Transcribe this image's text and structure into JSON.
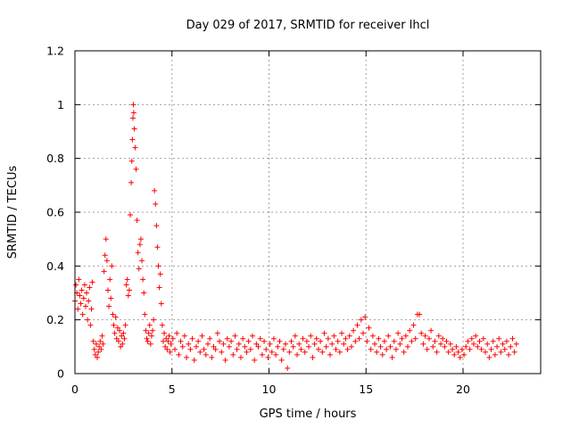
{
  "chart_data": {
    "type": "scatter",
    "title": "Day 029 of 2017, SRMTID for receiver lhcl",
    "xlabel": "GPS time / hours",
    "ylabel": "SRMTID / TECUs",
    "xlim": [
      0,
      24
    ],
    "ylim": [
      0,
      1.2
    ],
    "xticks": [
      0,
      5,
      10,
      15,
      20
    ],
    "xtick_labels": [
      "0",
      "5",
      "10",
      "15",
      "20"
    ],
    "yticks": [
      0,
      0.2,
      0.4,
      0.6,
      0.8,
      1,
      1.2
    ],
    "ytick_labels": [
      "0",
      "0.2",
      "0.4",
      "0.6",
      "0.8",
      "1",
      "1.2"
    ],
    "grid": true,
    "marker": "plus",
    "series": [
      {
        "name": "SRMTID",
        "color": "#ff0000",
        "points": [
          [
            0.0,
            0.27
          ],
          [
            0.05,
            0.33
          ],
          [
            0.1,
            0.3
          ],
          [
            0.15,
            0.24
          ],
          [
            0.2,
            0.35
          ],
          [
            0.25,
            0.29
          ],
          [
            0.3,
            0.26
          ],
          [
            0.35,
            0.31
          ],
          [
            0.4,
            0.22
          ],
          [
            0.45,
            0.28
          ],
          [
            0.5,
            0.33
          ],
          [
            0.55,
            0.25
          ],
          [
            0.6,
            0.3
          ],
          [
            0.65,
            0.2
          ],
          [
            0.7,
            0.27
          ],
          [
            0.75,
            0.32
          ],
          [
            0.8,
            0.18
          ],
          [
            0.85,
            0.24
          ],
          [
            0.9,
            0.34
          ],
          [
            0.95,
            0.12
          ],
          [
            1.0,
            0.09
          ],
          [
            1.05,
            0.07
          ],
          [
            1.1,
            0.11
          ],
          [
            1.15,
            0.06
          ],
          [
            1.2,
            0.08
          ],
          [
            1.25,
            0.1
          ],
          [
            1.3,
            0.12
          ],
          [
            1.35,
            0.09
          ],
          [
            1.4,
            0.14
          ],
          [
            1.45,
            0.11
          ],
          [
            1.5,
            0.38
          ],
          [
            1.55,
            0.44
          ],
          [
            1.6,
            0.5
          ],
          [
            1.65,
            0.42
          ],
          [
            1.7,
            0.31
          ],
          [
            1.75,
            0.25
          ],
          [
            1.8,
            0.35
          ],
          [
            1.85,
            0.28
          ],
          [
            1.9,
            0.4
          ],
          [
            1.95,
            0.22
          ],
          [
            2.0,
            0.18
          ],
          [
            2.05,
            0.15
          ],
          [
            2.1,
            0.21
          ],
          [
            2.15,
            0.13
          ],
          [
            2.2,
            0.17
          ],
          [
            2.25,
            0.12
          ],
          [
            2.3,
            0.16
          ],
          [
            2.35,
            0.1
          ],
          [
            2.4,
            0.14
          ],
          [
            2.45,
            0.11
          ],
          [
            2.5,
            0.15
          ],
          [
            2.55,
            0.13
          ],
          [
            2.6,
            0.18
          ],
          [
            2.65,
            0.33
          ],
          [
            2.7,
            0.35
          ],
          [
            2.75,
            0.29
          ],
          [
            2.8,
            0.31
          ],
          [
            2.85,
            0.59
          ],
          [
            2.9,
            0.71
          ],
          [
            2.93,
            0.79
          ],
          [
            2.96,
            0.87
          ],
          [
            2.99,
            0.95
          ],
          [
            3.01,
            1.0
          ],
          [
            3.03,
            0.97
          ],
          [
            3.06,
            0.91
          ],
          [
            3.1,
            0.84
          ],
          [
            3.15,
            0.76
          ],
          [
            3.2,
            0.57
          ],
          [
            3.25,
            0.45
          ],
          [
            3.3,
            0.39
          ],
          [
            3.35,
            0.48
          ],
          [
            3.4,
            0.5
          ],
          [
            3.45,
            0.42
          ],
          [
            3.5,
            0.35
          ],
          [
            3.55,
            0.3
          ],
          [
            3.6,
            0.22
          ],
          [
            3.65,
            0.16
          ],
          [
            3.7,
            0.13
          ],
          [
            3.75,
            0.12
          ],
          [
            3.8,
            0.15
          ],
          [
            3.85,
            0.18
          ],
          [
            3.9,
            0.11
          ],
          [
            3.95,
            0.14
          ],
          [
            4.0,
            0.16
          ],
          [
            4.05,
            0.2
          ],
          [
            4.1,
            0.68
          ],
          [
            4.15,
            0.63
          ],
          [
            4.2,
            0.55
          ],
          [
            4.25,
            0.47
          ],
          [
            4.3,
            0.4
          ],
          [
            4.35,
            0.32
          ],
          [
            4.4,
            0.37
          ],
          [
            4.45,
            0.26
          ],
          [
            4.5,
            0.18
          ],
          [
            4.55,
            0.12
          ],
          [
            4.6,
            0.15
          ],
          [
            4.65,
            0.1
          ],
          [
            4.7,
            0.13
          ],
          [
            4.75,
            0.09
          ],
          [
            4.8,
            0.12
          ],
          [
            4.85,
            0.14
          ],
          [
            4.9,
            0.08
          ],
          [
            4.95,
            0.11
          ],
          [
            5.05,
            0.13
          ],
          [
            5.15,
            0.09
          ],
          [
            5.25,
            0.15
          ],
          [
            5.35,
            0.07
          ],
          [
            5.45,
            0.12
          ],
          [
            5.55,
            0.1
          ],
          [
            5.65,
            0.14
          ],
          [
            5.75,
            0.06
          ],
          [
            5.85,
            0.11
          ],
          [
            5.95,
            0.09
          ],
          [
            6.05,
            0.13
          ],
          [
            6.15,
            0.05
          ],
          [
            6.25,
            0.1
          ],
          [
            6.35,
            0.12
          ],
          [
            6.45,
            0.08
          ],
          [
            6.55,
            0.14
          ],
          [
            6.65,
            0.09
          ],
          [
            6.75,
            0.07
          ],
          [
            6.85,
            0.11
          ],
          [
            6.95,
            0.13
          ],
          [
            7.05,
            0.06
          ],
          [
            7.15,
            0.1
          ],
          [
            7.25,
            0.09
          ],
          [
            7.35,
            0.15
          ],
          [
            7.45,
            0.12
          ],
          [
            7.55,
            0.08
          ],
          [
            7.65,
            0.11
          ],
          [
            7.75,
            0.05
          ],
          [
            7.85,
            0.13
          ],
          [
            7.95,
            0.1
          ],
          [
            8.05,
            0.12
          ],
          [
            8.15,
            0.07
          ],
          [
            8.25,
            0.14
          ],
          [
            8.35,
            0.09
          ],
          [
            8.45,
            0.11
          ],
          [
            8.55,
            0.06
          ],
          [
            8.65,
            0.13
          ],
          [
            8.75,
            0.1
          ],
          [
            8.85,
            0.08
          ],
          [
            8.95,
            0.12
          ],
          [
            9.05,
            0.09
          ],
          [
            9.15,
            0.14
          ],
          [
            9.25,
            0.05
          ],
          [
            9.35,
            0.11
          ],
          [
            9.45,
            0.1
          ],
          [
            9.55,
            0.13
          ],
          [
            9.65,
            0.07
          ],
          [
            9.75,
            0.12
          ],
          [
            9.85,
            0.09
          ],
          [
            9.95,
            0.06
          ],
          [
            10.05,
            0.11
          ],
          [
            10.15,
            0.08
          ],
          [
            10.25,
            0.13
          ],
          [
            10.35,
            0.07
          ],
          [
            10.45,
            0.1
          ],
          [
            10.55,
            0.12
          ],
          [
            10.65,
            0.05
          ],
          [
            10.75,
            0.09
          ],
          [
            10.85,
            0.11
          ],
          [
            10.95,
            0.02
          ],
          [
            11.05,
            0.08
          ],
          [
            11.15,
            0.12
          ],
          [
            11.25,
            0.1
          ],
          [
            11.35,
            0.14
          ],
          [
            11.45,
            0.07
          ],
          [
            11.55,
            0.11
          ],
          [
            11.65,
            0.09
          ],
          [
            11.75,
            0.13
          ],
          [
            11.85,
            0.08
          ],
          [
            11.95,
            0.12
          ],
          [
            12.05,
            0.1
          ],
          [
            12.15,
            0.14
          ],
          [
            12.25,
            0.06
          ],
          [
            12.35,
            0.11
          ],
          [
            12.45,
            0.13
          ],
          [
            12.55,
            0.09
          ],
          [
            12.65,
            0.12
          ],
          [
            12.75,
            0.08
          ],
          [
            12.85,
            0.15
          ],
          [
            12.95,
            0.1
          ],
          [
            13.05,
            0.13
          ],
          [
            13.15,
            0.07
          ],
          [
            13.25,
            0.11
          ],
          [
            13.35,
            0.14
          ],
          [
            13.45,
            0.09
          ],
          [
            13.55,
            0.12
          ],
          [
            13.65,
            0.08
          ],
          [
            13.75,
            0.15
          ],
          [
            13.85,
            0.11
          ],
          [
            13.95,
            0.13
          ],
          [
            14.05,
            0.09
          ],
          [
            14.15,
            0.14
          ],
          [
            14.25,
            0.1
          ],
          [
            14.35,
            0.16
          ],
          [
            14.45,
            0.12
          ],
          [
            14.55,
            0.18
          ],
          [
            14.65,
            0.13
          ],
          [
            14.75,
            0.2
          ],
          [
            14.85,
            0.15
          ],
          [
            14.95,
            0.21
          ],
          [
            15.05,
            0.12
          ],
          [
            15.15,
            0.17
          ],
          [
            15.25,
            0.09
          ],
          [
            15.35,
            0.14
          ],
          [
            15.45,
            0.11
          ],
          [
            15.55,
            0.08
          ],
          [
            15.65,
            0.13
          ],
          [
            15.75,
            0.1
          ],
          [
            15.85,
            0.07
          ],
          [
            15.95,
            0.12
          ],
          [
            16.05,
            0.09
          ],
          [
            16.15,
            0.14
          ],
          [
            16.25,
            0.1
          ],
          [
            16.35,
            0.06
          ],
          [
            16.45,
            0.12
          ],
          [
            16.55,
            0.09
          ],
          [
            16.65,
            0.15
          ],
          [
            16.75,
            0.11
          ],
          [
            16.85,
            0.13
          ],
          [
            16.95,
            0.08
          ],
          [
            17.05,
            0.14
          ],
          [
            17.15,
            0.1
          ],
          [
            17.25,
            0.16
          ],
          [
            17.35,
            0.12
          ],
          [
            17.45,
            0.18
          ],
          [
            17.55,
            0.13
          ],
          [
            17.65,
            0.22
          ],
          [
            17.75,
            0.22
          ],
          [
            17.85,
            0.15
          ],
          [
            17.95,
            0.11
          ],
          [
            18.05,
            0.14
          ],
          [
            18.15,
            0.09
          ],
          [
            18.25,
            0.13
          ],
          [
            18.35,
            0.16
          ],
          [
            18.45,
            0.1
          ],
          [
            18.55,
            0.12
          ],
          [
            18.65,
            0.08
          ],
          [
            18.75,
            0.14
          ],
          [
            18.85,
            0.11
          ],
          [
            18.95,
            0.13
          ],
          [
            19.05,
            0.1
          ],
          [
            19.15,
            0.12
          ],
          [
            19.25,
            0.08
          ],
          [
            19.35,
            0.11
          ],
          [
            19.45,
            0.09
          ],
          [
            19.55,
            0.07
          ],
          [
            19.65,
            0.1
          ],
          [
            19.75,
            0.08
          ],
          [
            19.85,
            0.06
          ],
          [
            19.95,
            0.09
          ],
          [
            20.05,
            0.07
          ],
          [
            20.15,
            0.1
          ],
          [
            20.25,
            0.12
          ],
          [
            20.35,
            0.09
          ],
          [
            20.45,
            0.13
          ],
          [
            20.55,
            0.11
          ],
          [
            20.65,
            0.14
          ],
          [
            20.75,
            0.1
          ],
          [
            20.85,
            0.12
          ],
          [
            20.95,
            0.09
          ],
          [
            21.05,
            0.13
          ],
          [
            21.15,
            0.08
          ],
          [
            21.25,
            0.11
          ],
          [
            21.35,
            0.06
          ],
          [
            21.45,
            0.09
          ],
          [
            21.55,
            0.12
          ],
          [
            21.65,
            0.07
          ],
          [
            21.75,
            0.1
          ],
          [
            21.85,
            0.13
          ],
          [
            21.95,
            0.08
          ],
          [
            22.05,
            0.11
          ],
          [
            22.15,
            0.09
          ],
          [
            22.25,
            0.12
          ],
          [
            22.35,
            0.07
          ],
          [
            22.45,
            0.1
          ],
          [
            22.55,
            0.13
          ],
          [
            22.65,
            0.08
          ],
          [
            22.75,
            0.11
          ]
        ]
      }
    ]
  }
}
